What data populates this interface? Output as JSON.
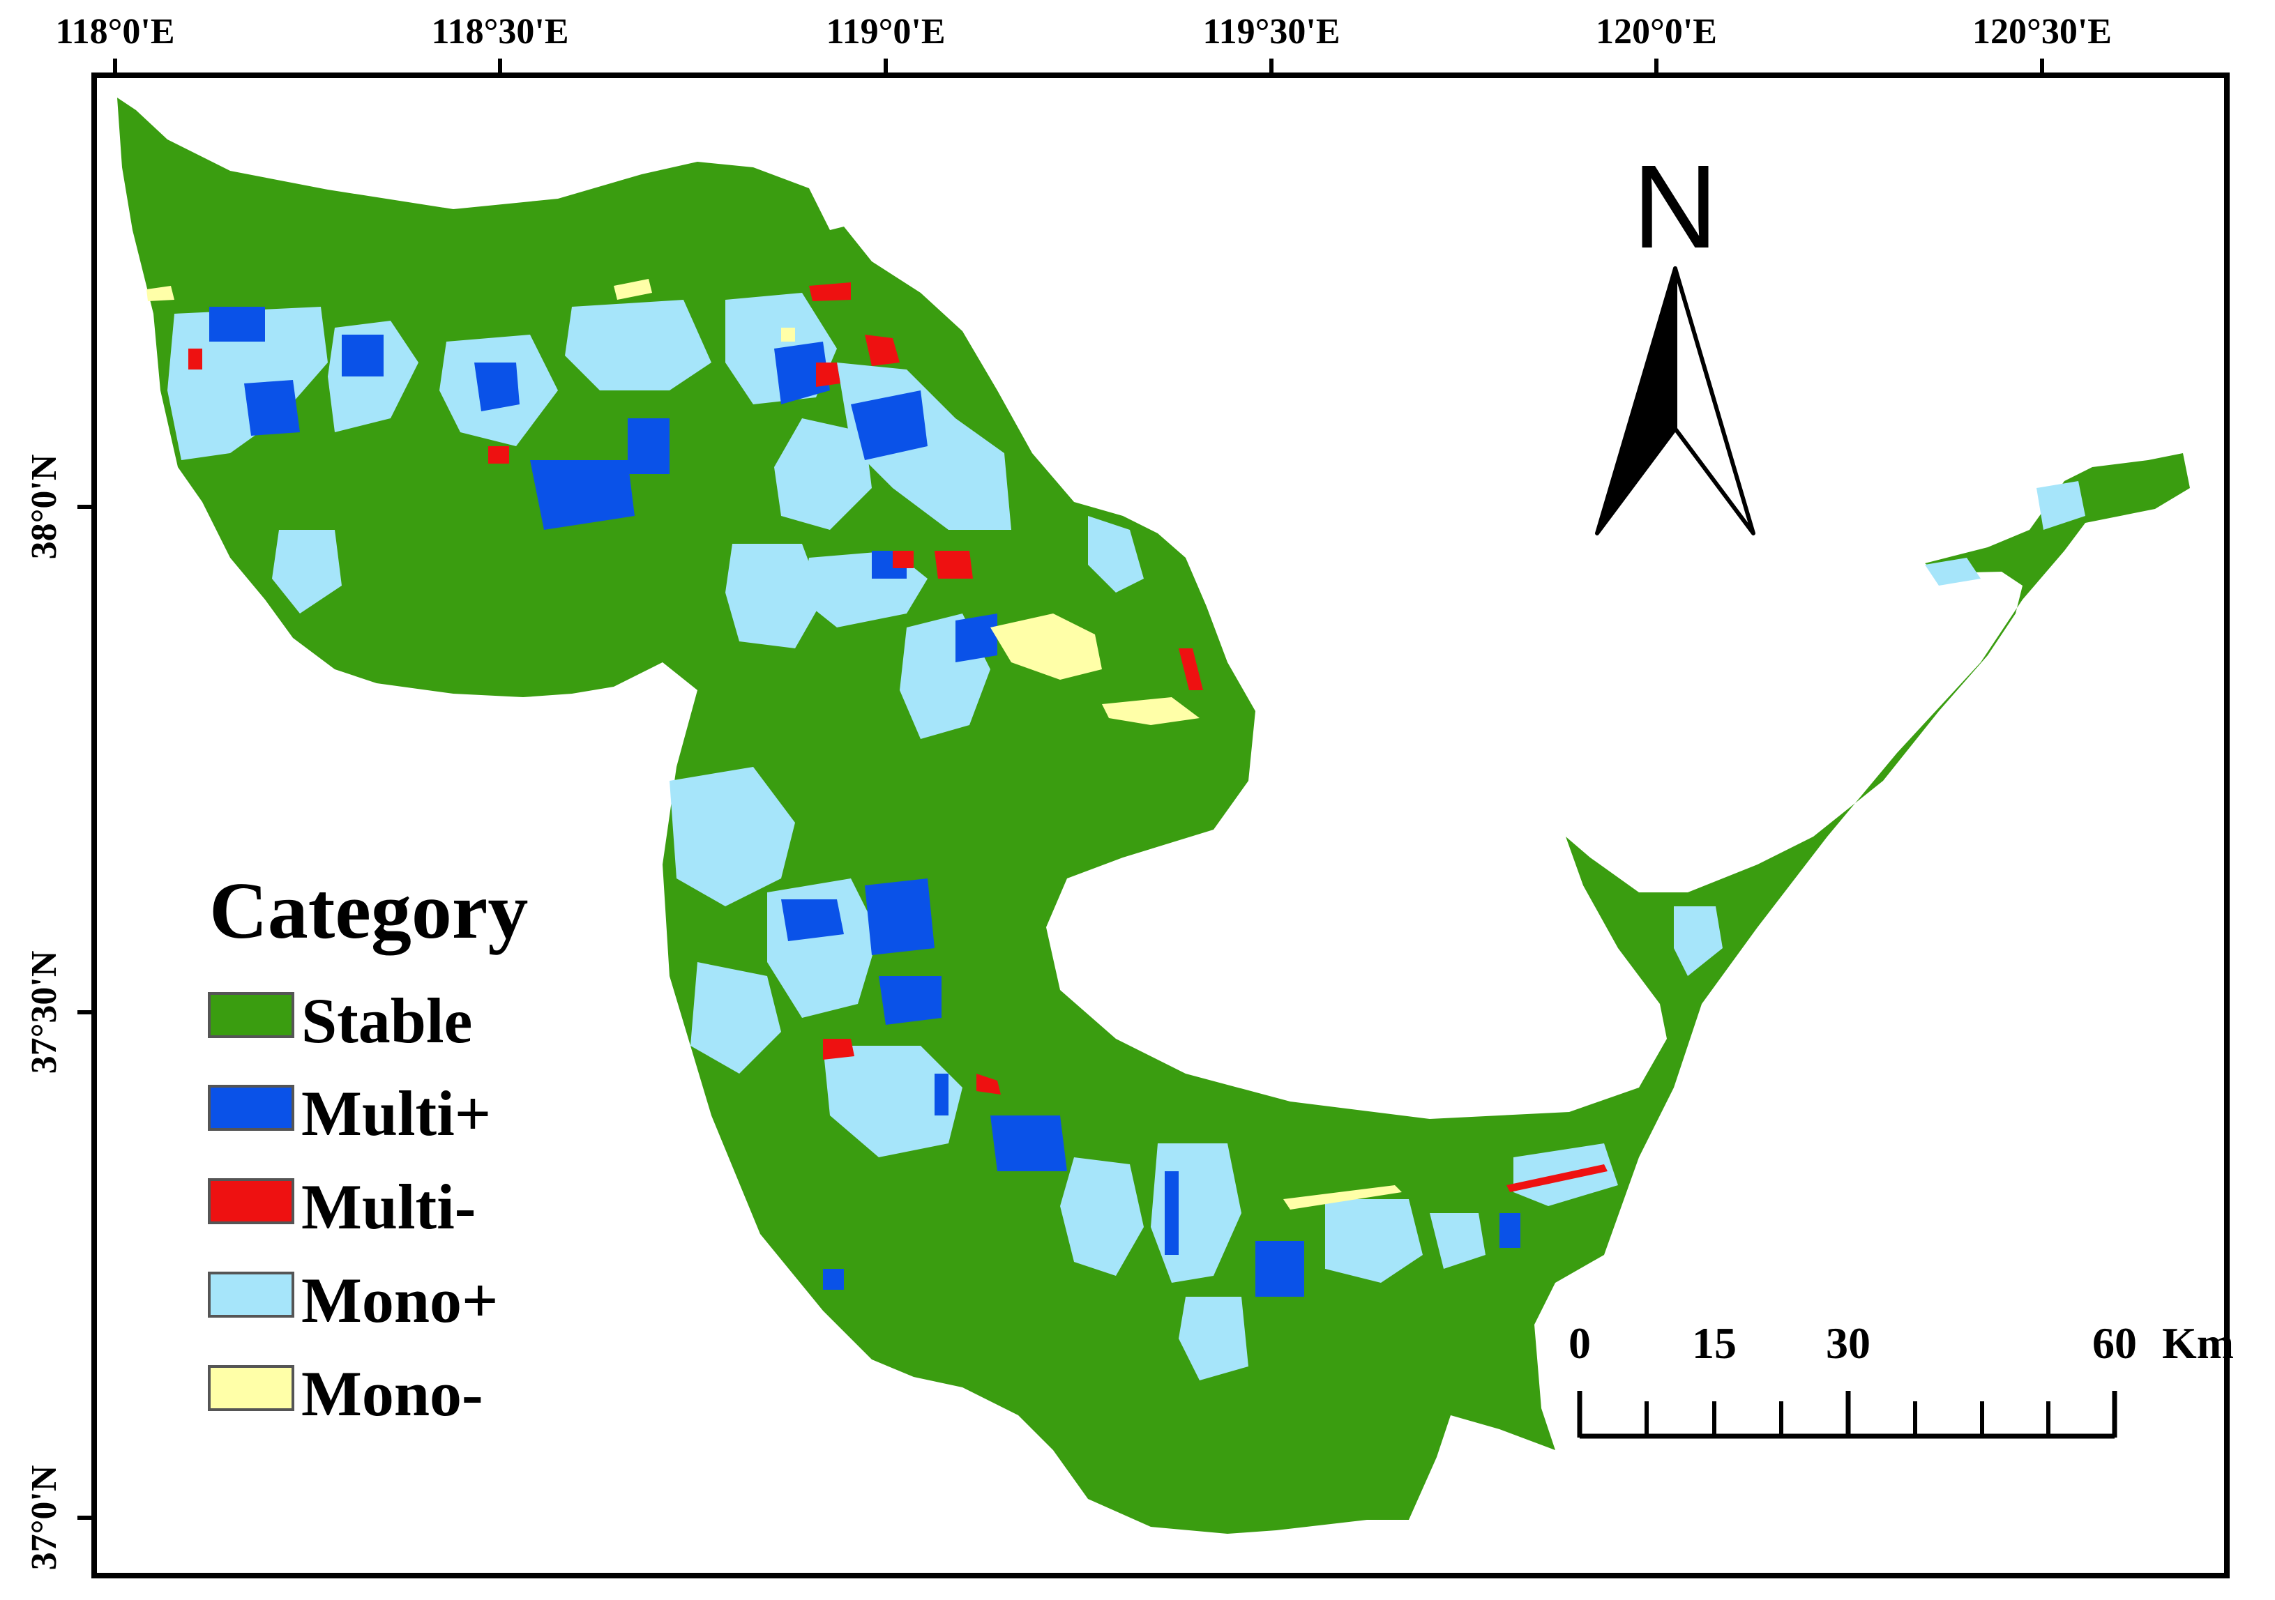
{
  "map": {
    "lon_labels": [
      "118°0'E",
      "118°30'E",
      "119°0'E",
      "119°30'E",
      "120°0'E",
      "120°30'E"
    ],
    "lat_labels": [
      "38°0'N",
      "37°30'N",
      "37°0'N"
    ],
    "north_label": "N",
    "legend": {
      "title": "Category",
      "items": [
        {
          "label": "Stable",
          "color": "#3a9d10"
        },
        {
          "label": "Multi+",
          "color": "#0a52e8"
        },
        {
          "label": "Multi-",
          "color": "#ee1111"
        },
        {
          "label": "Mono+",
          "color": "#a6e5fa"
        },
        {
          "label": "Mono-",
          "color": "#ffffa8"
        }
      ]
    },
    "scale_bar": {
      "labels": [
        "0",
        "15",
        "30",
        "60"
      ],
      "unit": "Km"
    },
    "colors": {
      "land": "#3a9d10",
      "frame": "#000000",
      "background": "#ffffff"
    }
  }
}
